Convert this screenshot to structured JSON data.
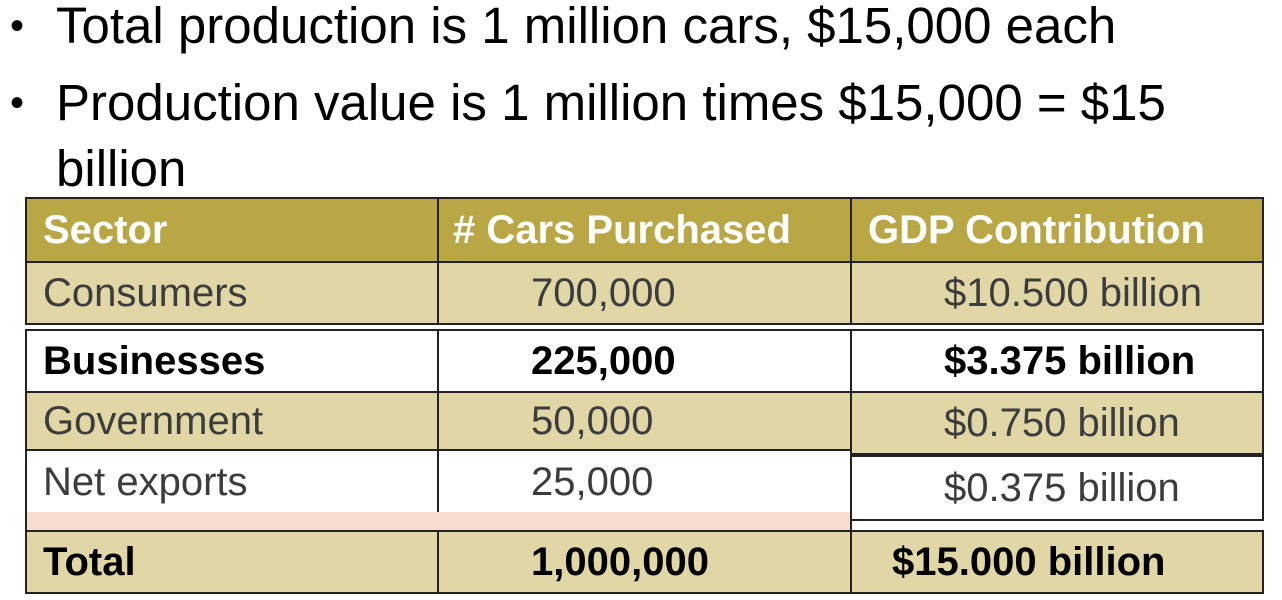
{
  "bullets": [
    "Total production is 1 million cars, $15,000 each",
    "Production value is 1 million times $15,000 = $15 billion"
  ],
  "bullet_marker": "•",
  "table": {
    "headers": [
      "Sector",
      "# Cars Purchased",
      "GDP Contribution"
    ],
    "rows": [
      {
        "sector": "Consumers",
        "cars": "700,000",
        "gdp": "$10.500 billion"
      },
      {
        "sector": "Businesses",
        "cars": "225,000",
        "gdp": "$3.375 billion"
      },
      {
        "sector": "Government",
        "cars": "50,000",
        "gdp": "$0.750 billion"
      },
      {
        "sector": "Net exports",
        "cars": "25,000",
        "gdp": "$0.375 billion"
      }
    ],
    "total": {
      "sector": "Total",
      "cars": "1,000,000",
      "gdp": "$15.000 billion"
    }
  },
  "colors": {
    "header_bg": "#b8a744",
    "tan_row_bg": "#e0d6a6",
    "white_row_bg": "#ffffff",
    "peach_strip": "#f7dccf"
  }
}
